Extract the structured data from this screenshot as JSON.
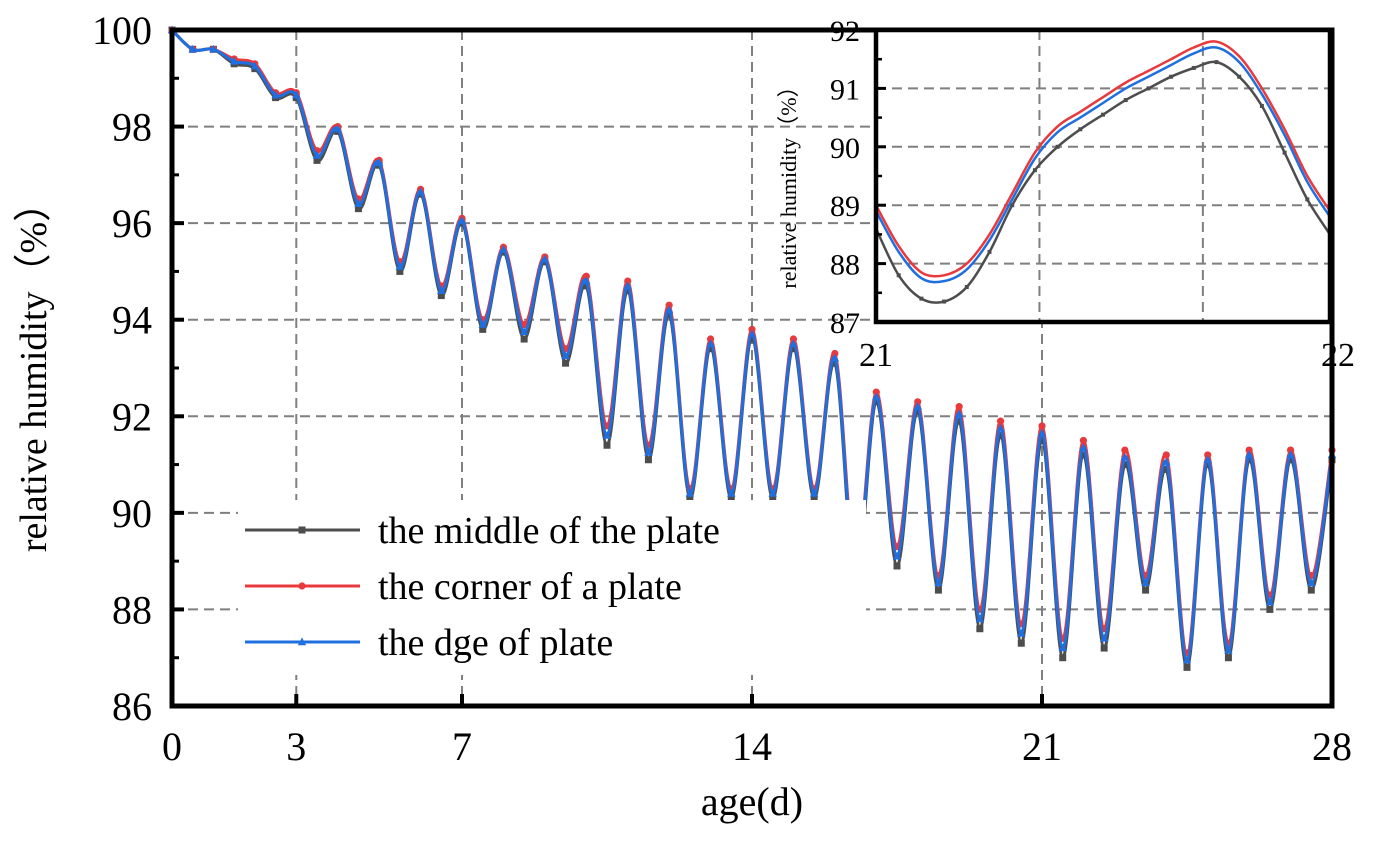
{
  "chart_data": [
    {
      "type": "line",
      "xlabel": "age(d)",
      "ylabel": "relative humidity（%）",
      "xlim": [
        0,
        28
      ],
      "ylim": [
        86,
        100
      ],
      "xticks": [
        0,
        3,
        7,
        14,
        21,
        28
      ],
      "yticks": [
        86,
        88,
        90,
        92,
        94,
        96,
        98,
        100
      ],
      "grid": true,
      "legend_position": "bottom-center",
      "x": [
        0,
        0.5,
        1,
        1.5,
        2,
        2.5,
        3,
        3.5,
        4,
        4.5,
        5,
        5.5,
        6,
        6.5,
        7,
        7.5,
        8,
        8.5,
        9,
        9.5,
        10,
        10.5,
        11,
        11.5,
        12,
        12.5,
        13,
        13.5,
        14,
        14.5,
        15,
        15.5,
        16,
        16.5,
        17,
        17.5,
        18,
        18.5,
        19,
        19.5,
        20,
        20.5,
        21,
        21.5,
        22,
        22.5,
        23,
        23.5,
        24,
        24.5,
        25,
        25.5,
        26,
        26.5,
        27,
        27.5,
        28
      ],
      "series": [
        {
          "name": "the middle of the plate",
          "color": "#4d4d4d",
          "marker": "square",
          "values": [
            100,
            99.6,
            99.6,
            99.3,
            99.2,
            98.6,
            98.6,
            97.3,
            97.9,
            96.3,
            97.2,
            95.0,
            96.6,
            94.5,
            96.0,
            93.8,
            95.4,
            93.6,
            95.2,
            93.1,
            94.7,
            91.4,
            94.6,
            91.1,
            94.1,
            90.3,
            93.4,
            90.3,
            93.6,
            90.3,
            93.4,
            90.3,
            93.1,
            88.5,
            92.3,
            88.9,
            92.1,
            88.4,
            91.9,
            87.6,
            91.6,
            87.3,
            91.5,
            87.0,
            91.2,
            87.2,
            91.0,
            88.4,
            90.9,
            86.8,
            91.0,
            87.0,
            91.1,
            88.0,
            91.1,
            88.4,
            91.1
          ]
        },
        {
          "name": "the corner of a plate",
          "color": "#e8393c",
          "marker": "circle",
          "values": [
            100,
            99.6,
            99.6,
            99.4,
            99.3,
            98.7,
            98.7,
            97.5,
            98.0,
            96.5,
            97.3,
            95.2,
            96.7,
            94.7,
            96.1,
            94.0,
            95.5,
            93.9,
            95.3,
            93.4,
            94.9,
            91.8,
            94.8,
            91.4,
            94.3,
            90.5,
            93.6,
            90.5,
            93.8,
            90.5,
            93.6,
            90.5,
            93.3,
            88.9,
            92.5,
            89.3,
            92.3,
            88.7,
            92.2,
            88.0,
            91.9,
            87.7,
            91.8,
            87.4,
            91.5,
            87.6,
            91.3,
            88.7,
            91.2,
            87.1,
            91.2,
            87.3,
            91.3,
            88.3,
            91.3,
            88.7,
            91.3
          ]
        },
        {
          "name": "the dge of plate",
          "color": "#1f6fe0",
          "marker": "triangle",
          "values": [
            100,
            99.6,
            99.6,
            99.35,
            99.25,
            98.65,
            98.65,
            97.4,
            97.95,
            96.4,
            97.25,
            95.1,
            96.65,
            94.6,
            96.05,
            93.9,
            95.45,
            93.75,
            95.25,
            93.25,
            94.8,
            91.6,
            94.7,
            91.25,
            94.2,
            90.4,
            93.5,
            90.4,
            93.7,
            90.4,
            93.5,
            90.4,
            93.2,
            88.7,
            92.4,
            89.1,
            92.2,
            88.55,
            92.05,
            87.8,
            91.75,
            87.5,
            91.65,
            87.2,
            91.35,
            87.4,
            91.15,
            88.55,
            91.05,
            86.95,
            91.1,
            87.15,
            91.2,
            88.15,
            91.2,
            88.55,
            91.2
          ]
        }
      ]
    },
    {
      "type": "line",
      "role": "inset",
      "xlabel": "",
      "ylabel": "relative humidity（%）",
      "xlim": [
        21,
        22
      ],
      "ylim": [
        87,
        92
      ],
      "xticks": [
        21,
        22
      ],
      "yticks": [
        87,
        88,
        89,
        90,
        91,
        92
      ],
      "grid": true,
      "x": [
        21.0,
        21.05,
        21.1,
        21.15,
        21.2,
        21.25,
        21.3,
        21.35,
        21.4,
        21.45,
        21.5,
        21.55,
        21.6,
        21.65,
        21.7,
        21.75,
        21.8,
        21.85,
        21.9,
        21.95,
        22.0
      ],
      "series": [
        {
          "name": "the middle of the plate",
          "color": "#4d4d4d",
          "values": [
            88.6,
            87.8,
            87.4,
            87.35,
            87.6,
            88.2,
            89.0,
            89.6,
            90.0,
            90.3,
            90.55,
            90.8,
            91.0,
            91.2,
            91.35,
            91.45,
            91.2,
            90.7,
            89.9,
            89.1,
            88.5
          ]
        },
        {
          "name": "the corner of a plate",
          "color": "#e8393c",
          "values": [
            89.0,
            88.3,
            87.85,
            87.8,
            88.0,
            88.5,
            89.2,
            89.9,
            90.35,
            90.6,
            90.85,
            91.1,
            91.3,
            91.5,
            91.7,
            91.8,
            91.55,
            91.0,
            90.3,
            89.5,
            88.9
          ]
        },
        {
          "name": "the dge of plate",
          "color": "#1f6fe0",
          "values": [
            88.9,
            88.2,
            87.75,
            87.7,
            87.9,
            88.4,
            89.1,
            89.8,
            90.25,
            90.5,
            90.75,
            91.0,
            91.2,
            91.4,
            91.6,
            91.7,
            91.45,
            90.9,
            90.2,
            89.4,
            88.8
          ]
        }
      ]
    }
  ]
}
